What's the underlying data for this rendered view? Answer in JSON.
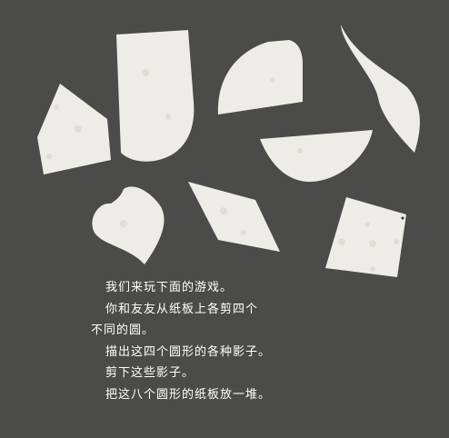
{
  "caption": {
    "lines": [
      "我们来玩下面的游戏。",
      "你和友友从纸板上各剪四个",
      "不同的圆。",
      "描出这四个圆形的各种影子。",
      "剪下这些影子。",
      "把这八个圆形的纸板放一堆。"
    ]
  },
  "colors": {
    "background": "#4b4c49",
    "paper": "#eeece6",
    "text": "#ffffff"
  },
  "shapes": [
    "house-pentagon",
    "rounded-rectangle",
    "bullet-tab",
    "wave-crescent",
    "half-circle",
    "heart",
    "rhombus",
    "square"
  ]
}
